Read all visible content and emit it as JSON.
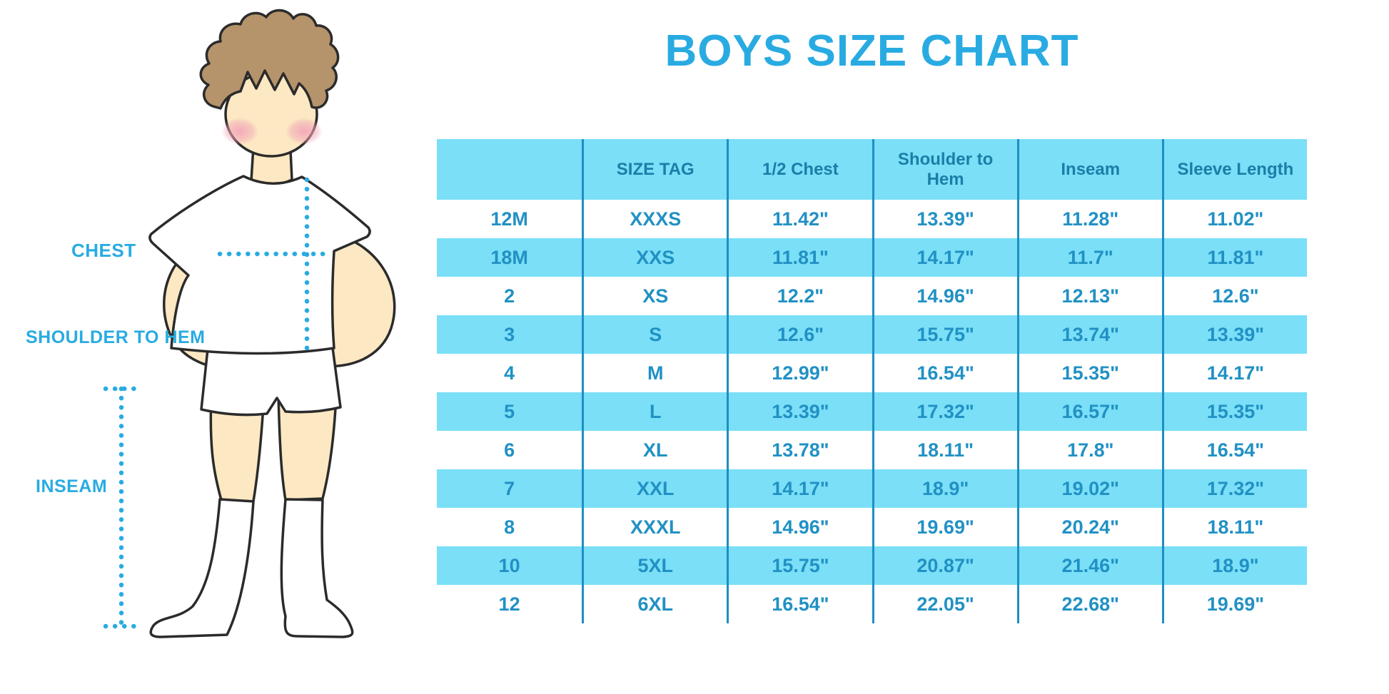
{
  "title": "BOYS SIZE CHART",
  "colors": {
    "accent_blue": "#29ABE2",
    "band_cyan": "#7ADFF7",
    "header_text": "#1B7EA8",
    "cell_text": "#2191C4",
    "divider": "#1E8FC2",
    "skin": "#FCE8C2",
    "hair": "#B5936B",
    "outline": "#2B2B2B",
    "cheek": "#F2A3B8"
  },
  "figure": {
    "labels": {
      "chest": "CHEST",
      "shoulder_to_hem": "SHOULDER TO HEM",
      "inseam": "INSEAM"
    }
  },
  "chart_data": {
    "type": "table",
    "title": "BOYS SIZE CHART",
    "columns": [
      "",
      "SIZE TAG",
      "1/2 Chest",
      "Shoulder to Hem",
      "Inseam",
      "Sleeve Length"
    ],
    "rows": [
      [
        "12M",
        "XXXS",
        "11.42\"",
        "13.39\"",
        "11.28\"",
        "11.02\""
      ],
      [
        "18M",
        "XXS",
        "11.81\"",
        "14.17\"",
        "11.7\"",
        "11.81\""
      ],
      [
        "2",
        "XS",
        "12.2\"",
        "14.96\"",
        "12.13\"",
        "12.6\""
      ],
      [
        "3",
        "S",
        "12.6\"",
        "15.75\"",
        "13.74\"",
        "13.39\""
      ],
      [
        "4",
        "M",
        "12.99\"",
        "16.54\"",
        "15.35\"",
        "14.17\""
      ],
      [
        "5",
        "L",
        "13.39\"",
        "17.32\"",
        "16.57\"",
        "15.35\""
      ],
      [
        "6",
        "XL",
        "13.78\"",
        "18.11\"",
        "17.8\"",
        "16.54\""
      ],
      [
        "7",
        "XXL",
        "14.17\"",
        "18.9\"",
        "19.02\"",
        "17.32\""
      ],
      [
        "8",
        "XXXL",
        "14.96\"",
        "19.69\"",
        "20.24\"",
        "18.11\""
      ],
      [
        "10",
        "5XL",
        "15.75\"",
        "20.87\"",
        "21.46\"",
        "18.9\""
      ],
      [
        "12",
        "6XL",
        "16.54\"",
        "22.05\"",
        "22.68\"",
        "19.69\""
      ]
    ],
    "layout": {
      "alternating_row_fill": "#7ADFF7",
      "first_data_row_fill": "#FFFFFF",
      "vertical_dividers": true,
      "horizontal_gridlines": false
    }
  }
}
